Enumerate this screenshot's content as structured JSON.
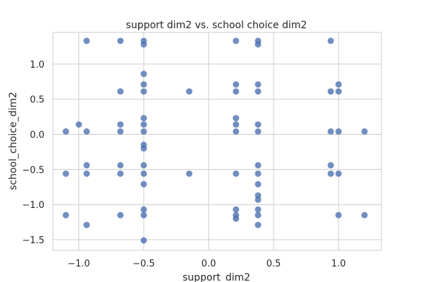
{
  "chart_data": {
    "type": "scatter",
    "title": "support dim2 vs. school choice dim2",
    "xlabel": "support_dim2",
    "ylabel": "school_choice_dim2",
    "xlim": [
      -1.2,
      1.33
    ],
    "ylim": [
      -1.65,
      1.45
    ],
    "xticks": [
      -1.0,
      -0.5,
      0.0,
      0.5,
      1.0
    ],
    "xtick_labels": [
      "−1.0",
      "−0.5",
      "0.0",
      "0.5",
      "1.0"
    ],
    "yticks": [
      -1.5,
      -1.0,
      -0.5,
      0.0,
      0.5,
      1.0
    ],
    "ytick_labels": [
      "−1.5",
      "−1.0",
      "−0.5",
      "0.0",
      "0.5",
      "1.0"
    ],
    "grid": true,
    "point_color": "#4c72b0",
    "grid_color": "#cccccc",
    "spine_color": "#cccccc",
    "points": [
      {
        "x": -1.1,
        "y": 0.04
      },
      {
        "x": -1.1,
        "y": -0.56
      },
      {
        "x": -1.1,
        "y": -1.15
      },
      {
        "x": -1.0,
        "y": 0.14
      },
      {
        "x": -0.94,
        "y": 1.33
      },
      {
        "x": -0.94,
        "y": 0.04
      },
      {
        "x": -0.94,
        "y": -0.44
      },
      {
        "x": -0.94,
        "y": -0.56
      },
      {
        "x": -0.94,
        "y": -1.29
      },
      {
        "x": -0.68,
        "y": 1.33
      },
      {
        "x": -0.68,
        "y": 0.61
      },
      {
        "x": -0.68,
        "y": 0.14
      },
      {
        "x": -0.68,
        "y": 0.04
      },
      {
        "x": -0.68,
        "y": -0.44
      },
      {
        "x": -0.68,
        "y": -0.56
      },
      {
        "x": -0.68,
        "y": -1.15
      },
      {
        "x": -0.5,
        "y": 1.33
      },
      {
        "x": -0.5,
        "y": 1.28
      },
      {
        "x": -0.5,
        "y": 0.86
      },
      {
        "x": -0.5,
        "y": 0.71
      },
      {
        "x": -0.5,
        "y": 0.61
      },
      {
        "x": -0.5,
        "y": 0.23
      },
      {
        "x": -0.5,
        "y": 0.14
      },
      {
        "x": -0.5,
        "y": 0.04
      },
      {
        "x": -0.5,
        "y": -0.15
      },
      {
        "x": -0.5,
        "y": -0.2
      },
      {
        "x": -0.5,
        "y": -0.44
      },
      {
        "x": -0.5,
        "y": -0.56
      },
      {
        "x": -0.5,
        "y": -0.71
      },
      {
        "x": -0.5,
        "y": -1.07
      },
      {
        "x": -0.5,
        "y": -1.15
      },
      {
        "x": -0.5,
        "y": -1.51
      },
      {
        "x": -0.15,
        "y": 0.61
      },
      {
        "x": -0.15,
        "y": -0.56
      },
      {
        "x": 0.21,
        "y": 1.33
      },
      {
        "x": 0.21,
        "y": 0.71
      },
      {
        "x": 0.21,
        "y": 0.61
      },
      {
        "x": 0.21,
        "y": 0.23
      },
      {
        "x": 0.21,
        "y": 0.14
      },
      {
        "x": 0.21,
        "y": 0.04
      },
      {
        "x": 0.21,
        "y": -0.56
      },
      {
        "x": 0.21,
        "y": -1.07
      },
      {
        "x": 0.21,
        "y": -1.15
      },
      {
        "x": 0.21,
        "y": -1.2
      },
      {
        "x": 0.38,
        "y": 1.33
      },
      {
        "x": 0.38,
        "y": 1.28
      },
      {
        "x": 0.38,
        "y": 0.71
      },
      {
        "x": 0.38,
        "y": 0.61
      },
      {
        "x": 0.38,
        "y": 0.14
      },
      {
        "x": 0.38,
        "y": 0.04
      },
      {
        "x": 0.38,
        "y": -0.44
      },
      {
        "x": 0.38,
        "y": -0.56
      },
      {
        "x": 0.38,
        "y": -0.71
      },
      {
        "x": 0.38,
        "y": -0.87
      },
      {
        "x": 0.38,
        "y": -0.93
      },
      {
        "x": 0.38,
        "y": -1.07
      },
      {
        "x": 0.38,
        "y": -1.15
      },
      {
        "x": 0.38,
        "y": -1.29
      },
      {
        "x": 0.94,
        "y": 1.33
      },
      {
        "x": 0.94,
        "y": 0.61
      },
      {
        "x": 0.94,
        "y": 0.04
      },
      {
        "x": 0.94,
        "y": -0.44
      },
      {
        "x": 0.94,
        "y": -0.56
      },
      {
        "x": 1.0,
        "y": 0.71
      },
      {
        "x": 1.0,
        "y": 0.61
      },
      {
        "x": 1.0,
        "y": 0.04
      },
      {
        "x": 1.0,
        "y": -0.56
      },
      {
        "x": 1.0,
        "y": -1.15
      },
      {
        "x": 1.2,
        "y": 0.04
      },
      {
        "x": 1.2,
        "y": -1.15
      }
    ]
  }
}
